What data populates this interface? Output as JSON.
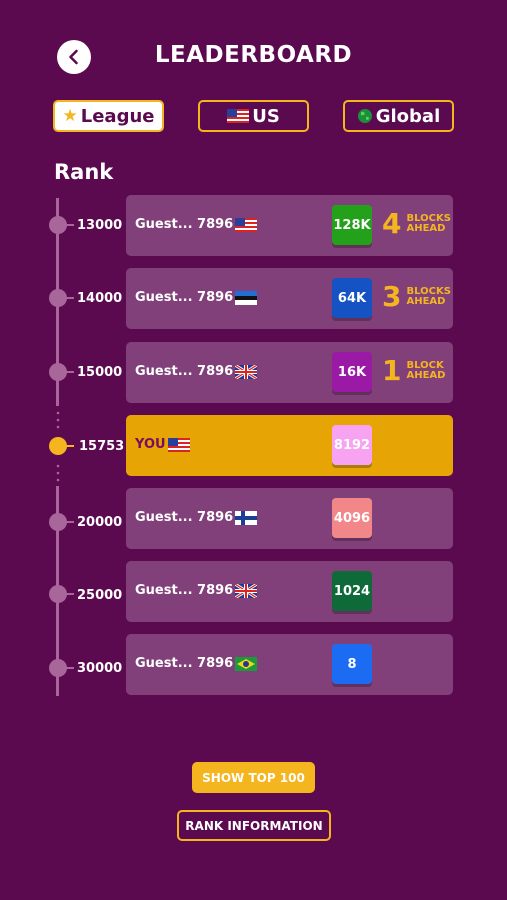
{
  "header": {
    "title": "LEADERBOARD",
    "back_icon": "chevron-left-icon"
  },
  "tabs": [
    {
      "label": "League",
      "icon": "star-icon",
      "active": true
    },
    {
      "label": "US",
      "icon": "us-flag-icon",
      "active": false
    },
    {
      "label": "Global",
      "icon": "globe-icon",
      "active": false
    }
  ],
  "rank_title": "Rank",
  "rows": [
    {
      "rank": "13000",
      "player": "Guest... 7896",
      "flag": "us-flag-icon",
      "block": "128K",
      "block_color": "#23a11a",
      "ahead_num": "4",
      "ahead_text": "BLOCKS AHEAD",
      "you": false
    },
    {
      "rank": "14000",
      "player": "Guest... 7896",
      "flag": "estonia-flag-icon",
      "block": "64K",
      "block_color": "#1553c4",
      "ahead_num": "3",
      "ahead_text": "BLOCKS AHEAD",
      "you": false
    },
    {
      "rank": "15000",
      "player": "Guest... 7896",
      "flag": "uk-flag-icon",
      "block": "16K",
      "block_color": "#9a1aa6",
      "ahead_num": "1",
      "ahead_text": "BLOCK AHEAD",
      "you": false
    },
    {
      "rank": "15753",
      "player": "YOU",
      "flag": "us-flag-icon",
      "block": "8192",
      "block_color": "#f7a3f2",
      "ahead_num": "",
      "ahead_text": "",
      "you": true
    },
    {
      "rank": "20000",
      "player": "Guest... 7896",
      "flag": "finland-flag-icon",
      "block": "4096",
      "block_color": "#f2878a",
      "ahead_num": "",
      "ahead_text": "",
      "you": false
    },
    {
      "rank": "25000",
      "player": "Guest... 7896",
      "flag": "uk-flag-icon",
      "block": "1024",
      "block_color": "#0f6a3a",
      "ahead_num": "",
      "ahead_text": "",
      "you": false
    },
    {
      "rank": "30000",
      "player": "Guest... 7896",
      "flag": "brazil-flag-icon",
      "block": "8",
      "block_color": "#1b6cf2",
      "ahead_num": "",
      "ahead_text": "",
      "you": false
    }
  ],
  "buttons": {
    "show_top": "SHOW TOP 100",
    "rank_info": "RANK INFORMATION"
  },
  "colors": {
    "background": "#5c0a4f",
    "row": "#82407a",
    "accent": "#f4b51f",
    "you_row": "#e6a504"
  }
}
